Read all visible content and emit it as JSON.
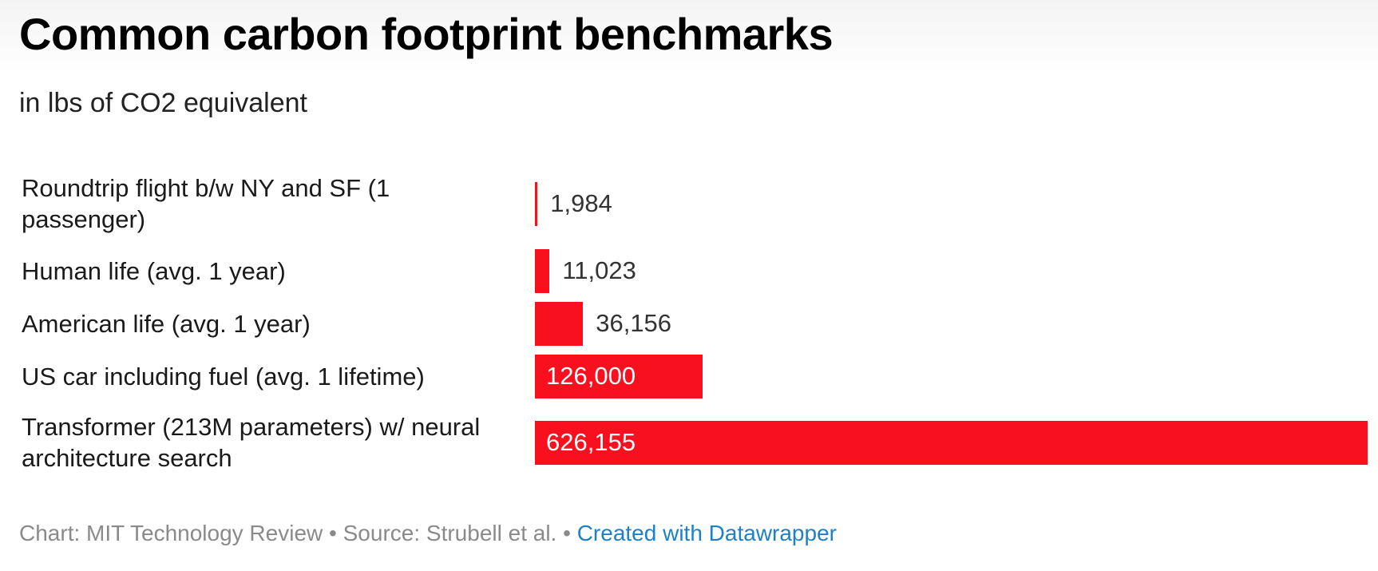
{
  "chart_data": {
    "type": "bar",
    "orientation": "horizontal",
    "title": "Common carbon footprint benchmarks",
    "subtitle": "in lbs of CO2 equivalent",
    "categories": [
      "Roundtrip flight b/w NY and SF (1 passenger)",
      "Human life (avg. 1 year)",
      "American life (avg. 1 year)",
      "US car including fuel (avg. 1 lifetime)",
      "Transformer (213M parameters) w/ neural architecture search"
    ],
    "values": [
      1984,
      11023,
      36156,
      126000,
      626155
    ],
    "value_labels": [
      "1,984",
      "11,023",
      "36,156",
      "126,000",
      "626,155"
    ],
    "xlim": [
      0,
      626155
    ],
    "bar_color": "#f8101f",
    "grid": false,
    "legend": "none"
  },
  "footer": {
    "chart_credit": "Chart: MIT Technology Review",
    "separator": " • ",
    "source": "Source: Strubell et al.",
    "link": "Created with Datawrapper"
  },
  "colors": {
    "bar": "#f8101f",
    "link": "#1d81c7",
    "footer_text": "#8a8a8a"
  }
}
